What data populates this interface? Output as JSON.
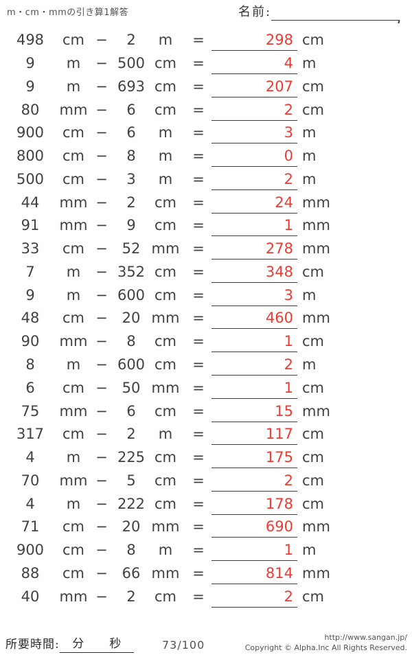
{
  "header": {
    "title": "m・cm・mmの引き算1解答",
    "name_label": "名前:"
  },
  "operators": {
    "minus": "−",
    "equals": "="
  },
  "problems": [
    {
      "a": "498",
      "ua": "cm",
      "b": "2",
      "ub": "m",
      "ans": "298",
      "uans": "cm"
    },
    {
      "a": "9",
      "ua": "m",
      "b": "500",
      "ub": "cm",
      "ans": "4",
      "uans": "m"
    },
    {
      "a": "9",
      "ua": "m",
      "b": "693",
      "ub": "cm",
      "ans": "207",
      "uans": "cm"
    },
    {
      "a": "80",
      "ua": "mm",
      "b": "6",
      "ub": "cm",
      "ans": "2",
      "uans": "cm"
    },
    {
      "a": "900",
      "ua": "cm",
      "b": "6",
      "ub": "m",
      "ans": "3",
      "uans": "m"
    },
    {
      "a": "800",
      "ua": "cm",
      "b": "8",
      "ub": "m",
      "ans": "0",
      "uans": "m"
    },
    {
      "a": "500",
      "ua": "cm",
      "b": "3",
      "ub": "m",
      "ans": "2",
      "uans": "m"
    },
    {
      "a": "44",
      "ua": "mm",
      "b": "2",
      "ub": "cm",
      "ans": "24",
      "uans": "mm"
    },
    {
      "a": "91",
      "ua": "mm",
      "b": "9",
      "ub": "cm",
      "ans": "1",
      "uans": "mm"
    },
    {
      "a": "33",
      "ua": "cm",
      "b": "52",
      "ub": "mm",
      "ans": "278",
      "uans": "mm"
    },
    {
      "a": "7",
      "ua": "m",
      "b": "352",
      "ub": "cm",
      "ans": "348",
      "uans": "cm"
    },
    {
      "a": "9",
      "ua": "m",
      "b": "600",
      "ub": "cm",
      "ans": "3",
      "uans": "m"
    },
    {
      "a": "48",
      "ua": "cm",
      "b": "20",
      "ub": "mm",
      "ans": "460",
      "uans": "mm"
    },
    {
      "a": "90",
      "ua": "mm",
      "b": "8",
      "ub": "cm",
      "ans": "1",
      "uans": "cm"
    },
    {
      "a": "8",
      "ua": "m",
      "b": "600",
      "ub": "cm",
      "ans": "2",
      "uans": "m"
    },
    {
      "a": "6",
      "ua": "cm",
      "b": "50",
      "ub": "mm",
      "ans": "1",
      "uans": "cm"
    },
    {
      "a": "75",
      "ua": "mm",
      "b": "6",
      "ub": "cm",
      "ans": "15",
      "uans": "mm"
    },
    {
      "a": "317",
      "ua": "cm",
      "b": "2",
      "ub": "m",
      "ans": "117",
      "uans": "cm"
    },
    {
      "a": "4",
      "ua": "m",
      "b": "225",
      "ub": "cm",
      "ans": "175",
      "uans": "cm"
    },
    {
      "a": "70",
      "ua": "mm",
      "b": "5",
      "ub": "cm",
      "ans": "2",
      "uans": "cm"
    },
    {
      "a": "4",
      "ua": "m",
      "b": "222",
      "ub": "cm",
      "ans": "178",
      "uans": "cm"
    },
    {
      "a": "71",
      "ua": "cm",
      "b": "20",
      "ub": "mm",
      "ans": "690",
      "uans": "mm"
    },
    {
      "a": "900",
      "ua": "cm",
      "b": "8",
      "ub": "m",
      "ans": "1",
      "uans": "m"
    },
    {
      "a": "88",
      "ua": "cm",
      "b": "66",
      "ub": "mm",
      "ans": "814",
      "uans": "mm"
    },
    {
      "a": "40",
      "ua": "mm",
      "b": "2",
      "ub": "cm",
      "ans": "2",
      "uans": "cm"
    }
  ],
  "footer": {
    "time_label": "所要時間:",
    "minutes_label": "分",
    "seconds_label": "秒",
    "page": "73/100",
    "url": "http://www.sangan.jp/",
    "copyright": "Copyright © Alpha.Inc All Rights Reserved."
  },
  "colors": {
    "answer_red": "#ee3a31",
    "text": "#454040"
  }
}
